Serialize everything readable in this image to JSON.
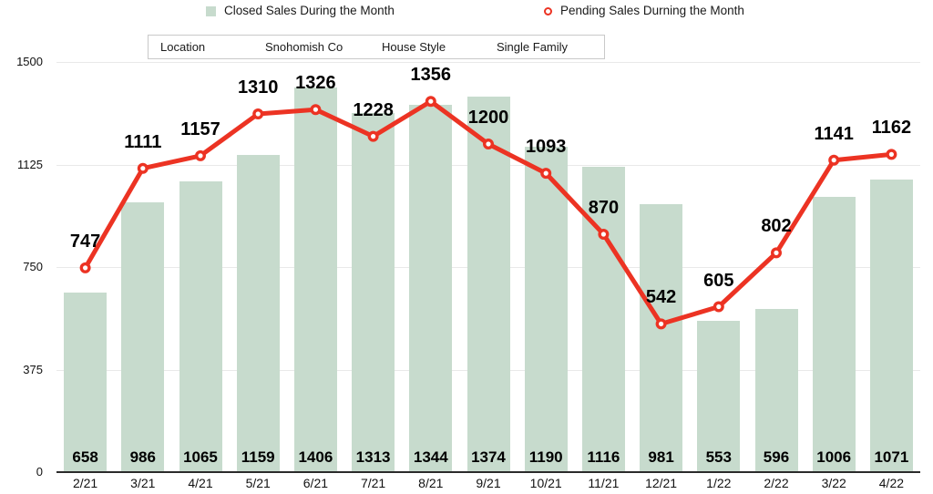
{
  "legend": {
    "closed": {
      "label": "Closed Sales During the Month"
    },
    "pending": {
      "label": "Pending Sales Durning the Month"
    }
  },
  "filters": {
    "location_label": "Location",
    "location_value": "Snohomish Co",
    "house_style_label": "House Style",
    "house_style_value": "Single Family"
  },
  "chart_data": {
    "type": "bar",
    "categories": [
      "2/21",
      "3/21",
      "4/21",
      "5/21",
      "6/21",
      "7/21",
      "8/21",
      "9/21",
      "10/21",
      "11/21",
      "12/21",
      "1/22",
      "2/22",
      "3/22",
      "4/22"
    ],
    "series": [
      {
        "name": "Closed Sales During the Month",
        "type": "bar",
        "values": [
          658,
          986,
          1065,
          1159,
          1406,
          1313,
          1344,
          1374,
          1190,
          1116,
          981,
          553,
          596,
          1006,
          1071
        ]
      },
      {
        "name": "Pending Sales Durning the Month",
        "type": "line",
        "values": [
          747,
          1111,
          1157,
          1310,
          1326,
          1228,
          1356,
          1200,
          1093,
          870,
          542,
          605,
          802,
          1141,
          1162
        ]
      }
    ],
    "yticks": [
      0,
      375,
      750,
      1125,
      1500
    ],
    "ylim": [
      0,
      1500
    ],
    "grid": "horizontal",
    "legend_position": "top",
    "data_labels": {
      "bar": "inside-bottom-bold",
      "line": "above-point-bold"
    },
    "colors": {
      "bar": "#c7dbcd",
      "line": "#ec3323",
      "marker_fill": "#ffffff",
      "gridline": "#e9e9e9",
      "axis": "#2b2b2b",
      "label_text": "#000000"
    }
  }
}
